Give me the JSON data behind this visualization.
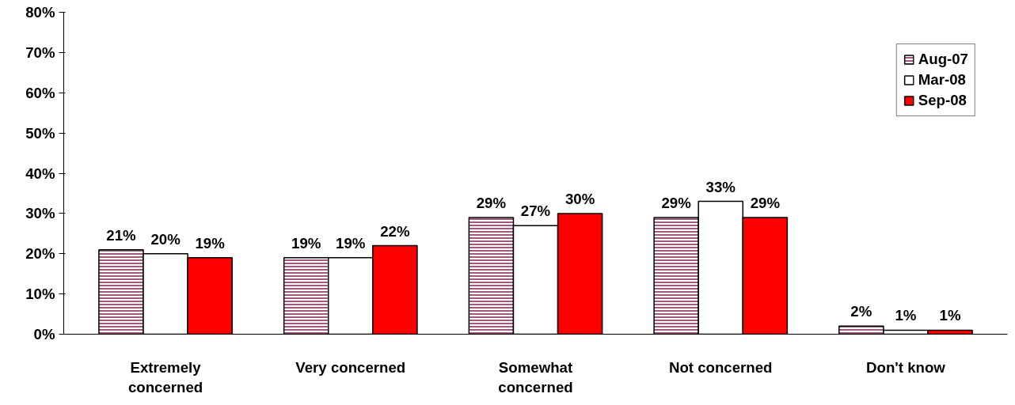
{
  "chart_data": {
    "type": "bar",
    "categories": [
      "Extremely concerned",
      "Very concerned",
      "Somewhat concerned",
      "Not concerned",
      "Don't know"
    ],
    "series": [
      {
        "name": "Aug-07",
        "color": "#a05a80",
        "values": [
          21,
          19,
          29,
          29,
          2
        ],
        "value_labels": [
          "21%",
          "19%",
          "29%",
          "29%",
          "2%"
        ]
      },
      {
        "name": "Mar-08",
        "color": "#ffffff",
        "values": [
          20,
          19,
          27,
          33,
          1
        ],
        "value_labels": [
          "20%",
          "19%",
          "27%",
          "33%",
          "1%"
        ]
      },
      {
        "name": "Sep-08",
        "color": "#ff0000",
        "values": [
          19,
          22,
          30,
          29,
          1
        ],
        "value_labels": [
          "19%",
          "22%",
          "30%",
          "29%",
          "1%"
        ]
      }
    ],
    "ylim": [
      0,
      80
    ],
    "yticks": [
      {
        "value": 0,
        "label": "0%"
      },
      {
        "value": 10,
        "label": "10%"
      },
      {
        "value": 20,
        "label": "20%"
      },
      {
        "value": 30,
        "label": "30%"
      },
      {
        "value": 40,
        "label": "40%"
      },
      {
        "value": 50,
        "label": "50%"
      },
      {
        "value": 60,
        "label": "60%"
      },
      {
        "value": 70,
        "label": "70%"
      },
      {
        "value": 80,
        "label": "80%"
      }
    ],
    "grid": false,
    "legend": "top right"
  }
}
